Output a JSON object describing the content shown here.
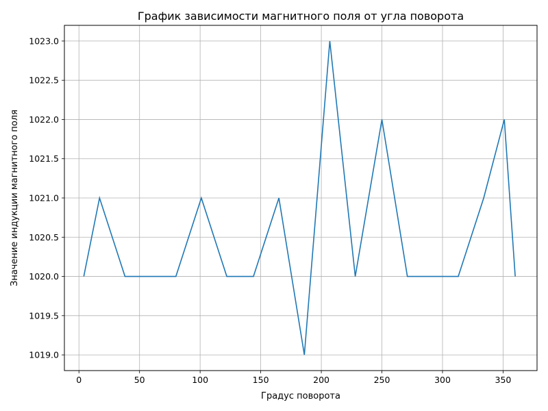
{
  "chart_data": {
    "type": "line",
    "title": "График зависимости магнитного поля от угла поворота",
    "xlabel": "Градус поворота",
    "ylabel": "Значение индукции магнитного поля",
    "xlim": [
      -12,
      378
    ],
    "ylim": [
      1018.8,
      1023.2
    ],
    "xticks": [
      0,
      50,
      100,
      150,
      200,
      250,
      300,
      350
    ],
    "yticks": [
      1019.0,
      1019.5,
      1020.0,
      1020.5,
      1021.0,
      1021.5,
      1022.0,
      1022.5,
      1023.0
    ],
    "grid": true,
    "line_color": "#1f77b4",
    "series": [
      {
        "x": [
          4,
          17,
          38,
          59,
          80,
          101,
          122,
          144,
          165,
          186,
          207,
          228,
          250,
          271,
          292,
          313,
          334,
          351,
          360
        ],
        "y": [
          1020,
          1021,
          1020,
          1020,
          1020,
          1021,
          1020,
          1020,
          1021,
          1019,
          1023,
          1020,
          1022,
          1020,
          1020,
          1020,
          1021,
          1022,
          1020
        ]
      }
    ]
  }
}
